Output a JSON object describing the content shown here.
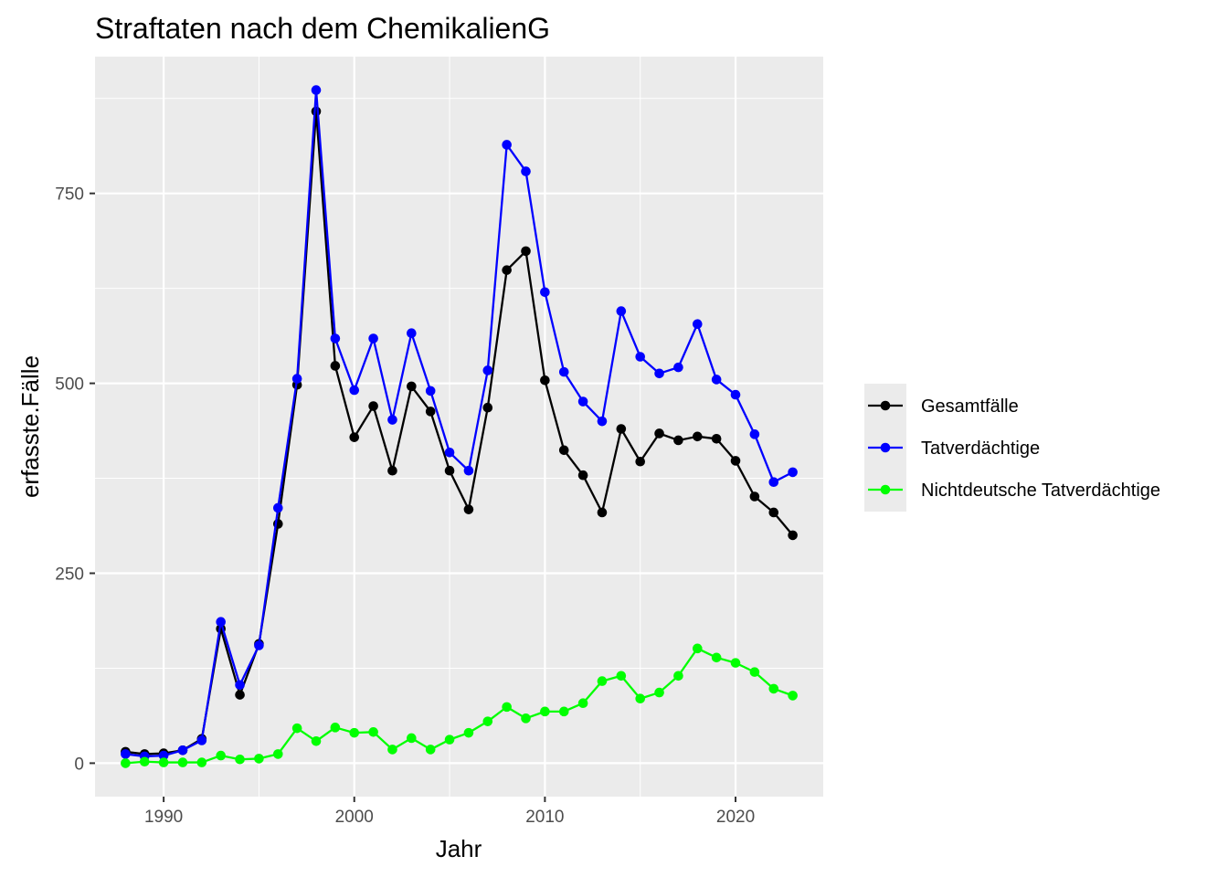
{
  "chart_data": {
    "type": "line",
    "title": "Straftaten nach dem ChemikalienG",
    "xlabel": "Jahr",
    "ylabel": "erfasste.Fälle",
    "xlim": [
      1986.4,
      2024.6
    ],
    "ylim": [
      -44,
      930
    ],
    "x_ticks": [
      1990,
      2000,
      2010,
      2020
    ],
    "y_ticks": [
      0,
      250,
      500,
      750
    ],
    "x_tick_labels": [
      "1990",
      "2000",
      "2010",
      "2020"
    ],
    "y_tick_labels": [
      "0",
      "250",
      "500",
      "750"
    ],
    "grid": true,
    "legend_position": "right",
    "x": [
      1988,
      1989,
      1990,
      1991,
      1992,
      1993,
      1994,
      1995,
      1996,
      1997,
      1998,
      1999,
      2000,
      2001,
      2002,
      2003,
      2004,
      2005,
      2006,
      2007,
      2008,
      2009,
      2010,
      2011,
      2012,
      2013,
      2014,
      2015,
      2016,
      2017,
      2018,
      2019,
      2020,
      2021,
      2022,
      2023
    ],
    "series": [
      {
        "name": "Gesamtfälle",
        "color": "#000000",
        "values": [
          15,
          12,
          13,
          17,
          32,
          177,
          90,
          157,
          315,
          498,
          858,
          523,
          429,
          470,
          385,
          496,
          463,
          385,
          334,
          468,
          649,
          674,
          504,
          412,
          379,
          330,
          440,
          397,
          434,
          425,
          430,
          427,
          398,
          351,
          330,
          300
        ]
      },
      {
        "name": "Tatverdächtige",
        "color": "#0000ff",
        "values": [
          12,
          9,
          10,
          17,
          30,
          186,
          103,
          155,
          336,
          506,
          886,
          559,
          491,
          559,
          452,
          566,
          490,
          409,
          385,
          517,
          814,
          779,
          620,
          515,
          476,
          450,
          595,
          535,
          513,
          521,
          578,
          505,
          485,
          433,
          370,
          383
        ]
      },
      {
        "name": "Nichtdeutsche Tatverdächtige",
        "color": "#00ff00",
        "values": [
          0,
          2,
          1,
          1,
          1,
          10,
          5,
          6,
          12,
          46,
          29,
          47,
          40,
          41,
          18,
          33,
          18,
          31,
          40,
          55,
          74,
          59,
          68,
          68,
          79,
          108,
          115,
          85,
          93,
          115,
          151,
          139,
          132,
          120,
          98,
          89
        ]
      }
    ]
  }
}
